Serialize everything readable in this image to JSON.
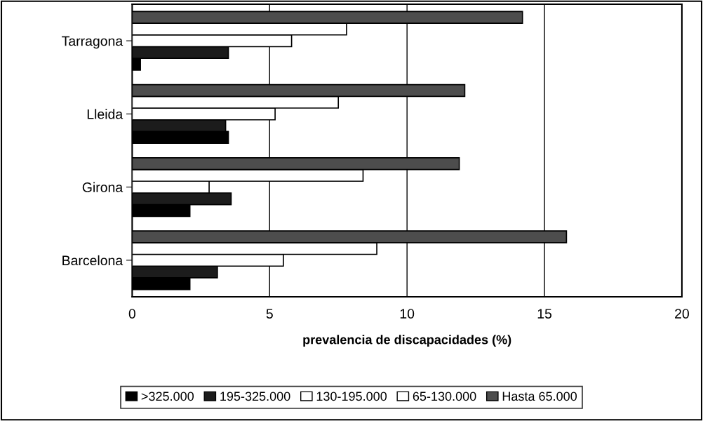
{
  "chart_data": {
    "type": "bar",
    "orientation": "horizontal",
    "xlabel": "prevalencia de discapacidades (%)",
    "categories": [
      "Tarragona",
      "Lleida",
      "Girona",
      "Barcelona"
    ],
    "series": [
      {
        "name": ">325.000",
        "color": "#000000",
        "values": [
          0.3,
          3.5,
          2.1,
          2.1
        ]
      },
      {
        "name": "195-325.000",
        "color": "#1c1c1c",
        "values": [
          3.5,
          3.4,
          3.6,
          3.1
        ]
      },
      {
        "name": "130-195.000",
        "color": "#ffffff",
        "values": [
          5.8,
          5.2,
          2.8,
          5.5
        ]
      },
      {
        "name": "65-130.000",
        "color": "#ffffff",
        "values": [
          7.8,
          7.5,
          8.4,
          8.9
        ]
      },
      {
        "name": "Hasta 65.000",
        "color": "#4d4d4d",
        "values": [
          14.2,
          12.1,
          11.9,
          15.8
        ]
      }
    ],
    "xlim": [
      0,
      20
    ],
    "xticks": [
      0,
      5,
      10,
      15,
      20
    ],
    "grid": "x",
    "legend": "bottom"
  }
}
